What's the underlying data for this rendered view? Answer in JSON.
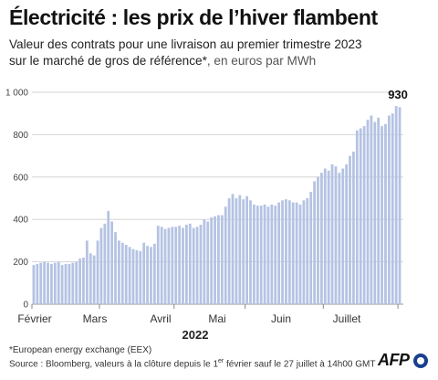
{
  "header": {
    "title": "Électricité : les prix de l’hiver flambent",
    "subtitle_line1": "Valeur des contrats pour une livraison au premier trimestre 2023",
    "subtitle_line2a": "sur le marché de gros de référence*",
    "subtitle_line2b": ", en euros par MWh"
  },
  "footer": {
    "note1": "*European energy exchange (EEX)",
    "note2a": "Source : Bloomberg, valeurs à la clôture depuis le 1",
    "note2_sup": "er",
    "note2b": " février sauf le 27 juillet à 14h00 GMT",
    "logo": "AFP"
  },
  "chart_data": {
    "type": "bar",
    "title": "Électricité : les prix de l’hiver flambent",
    "ylabel": "",
    "xlabel": "2022",
    "ylim": [
      0,
      1000
    ],
    "yticks": [
      0,
      200,
      400,
      600,
      800,
      "1 000"
    ],
    "grid": true,
    "bar_color": "#b5c3e3",
    "month_labels": [
      "Février",
      "Mars",
      "Avril",
      "Mai",
      "Juin",
      "Juillet"
    ],
    "year_label": "2022",
    "last_value_label": "930",
    "values": [
      185,
      190,
      195,
      200,
      195,
      190,
      195,
      200,
      185,
      190,
      190,
      195,
      200,
      215,
      220,
      300,
      240,
      230,
      300,
      360,
      380,
      440,
      390,
      340,
      300,
      290,
      280,
      270,
      260,
      255,
      250,
      290,
      275,
      270,
      285,
      370,
      365,
      355,
      360,
      365,
      365,
      370,
      360,
      375,
      380,
      360,
      365,
      375,
      400,
      390,
      410,
      415,
      420,
      420,
      460,
      500,
      520,
      500,
      515,
      495,
      510,
      490,
      470,
      465,
      465,
      470,
      460,
      470,
      465,
      480,
      490,
      495,
      490,
      480,
      480,
      470,
      490,
      500,
      530,
      580,
      600,
      620,
      640,
      630,
      660,
      650,
      620,
      640,
      660,
      700,
      720,
      820,
      830,
      840,
      870,
      890,
      860,
      880,
      840,
      850,
      890,
      900,
      935,
      930
    ]
  }
}
